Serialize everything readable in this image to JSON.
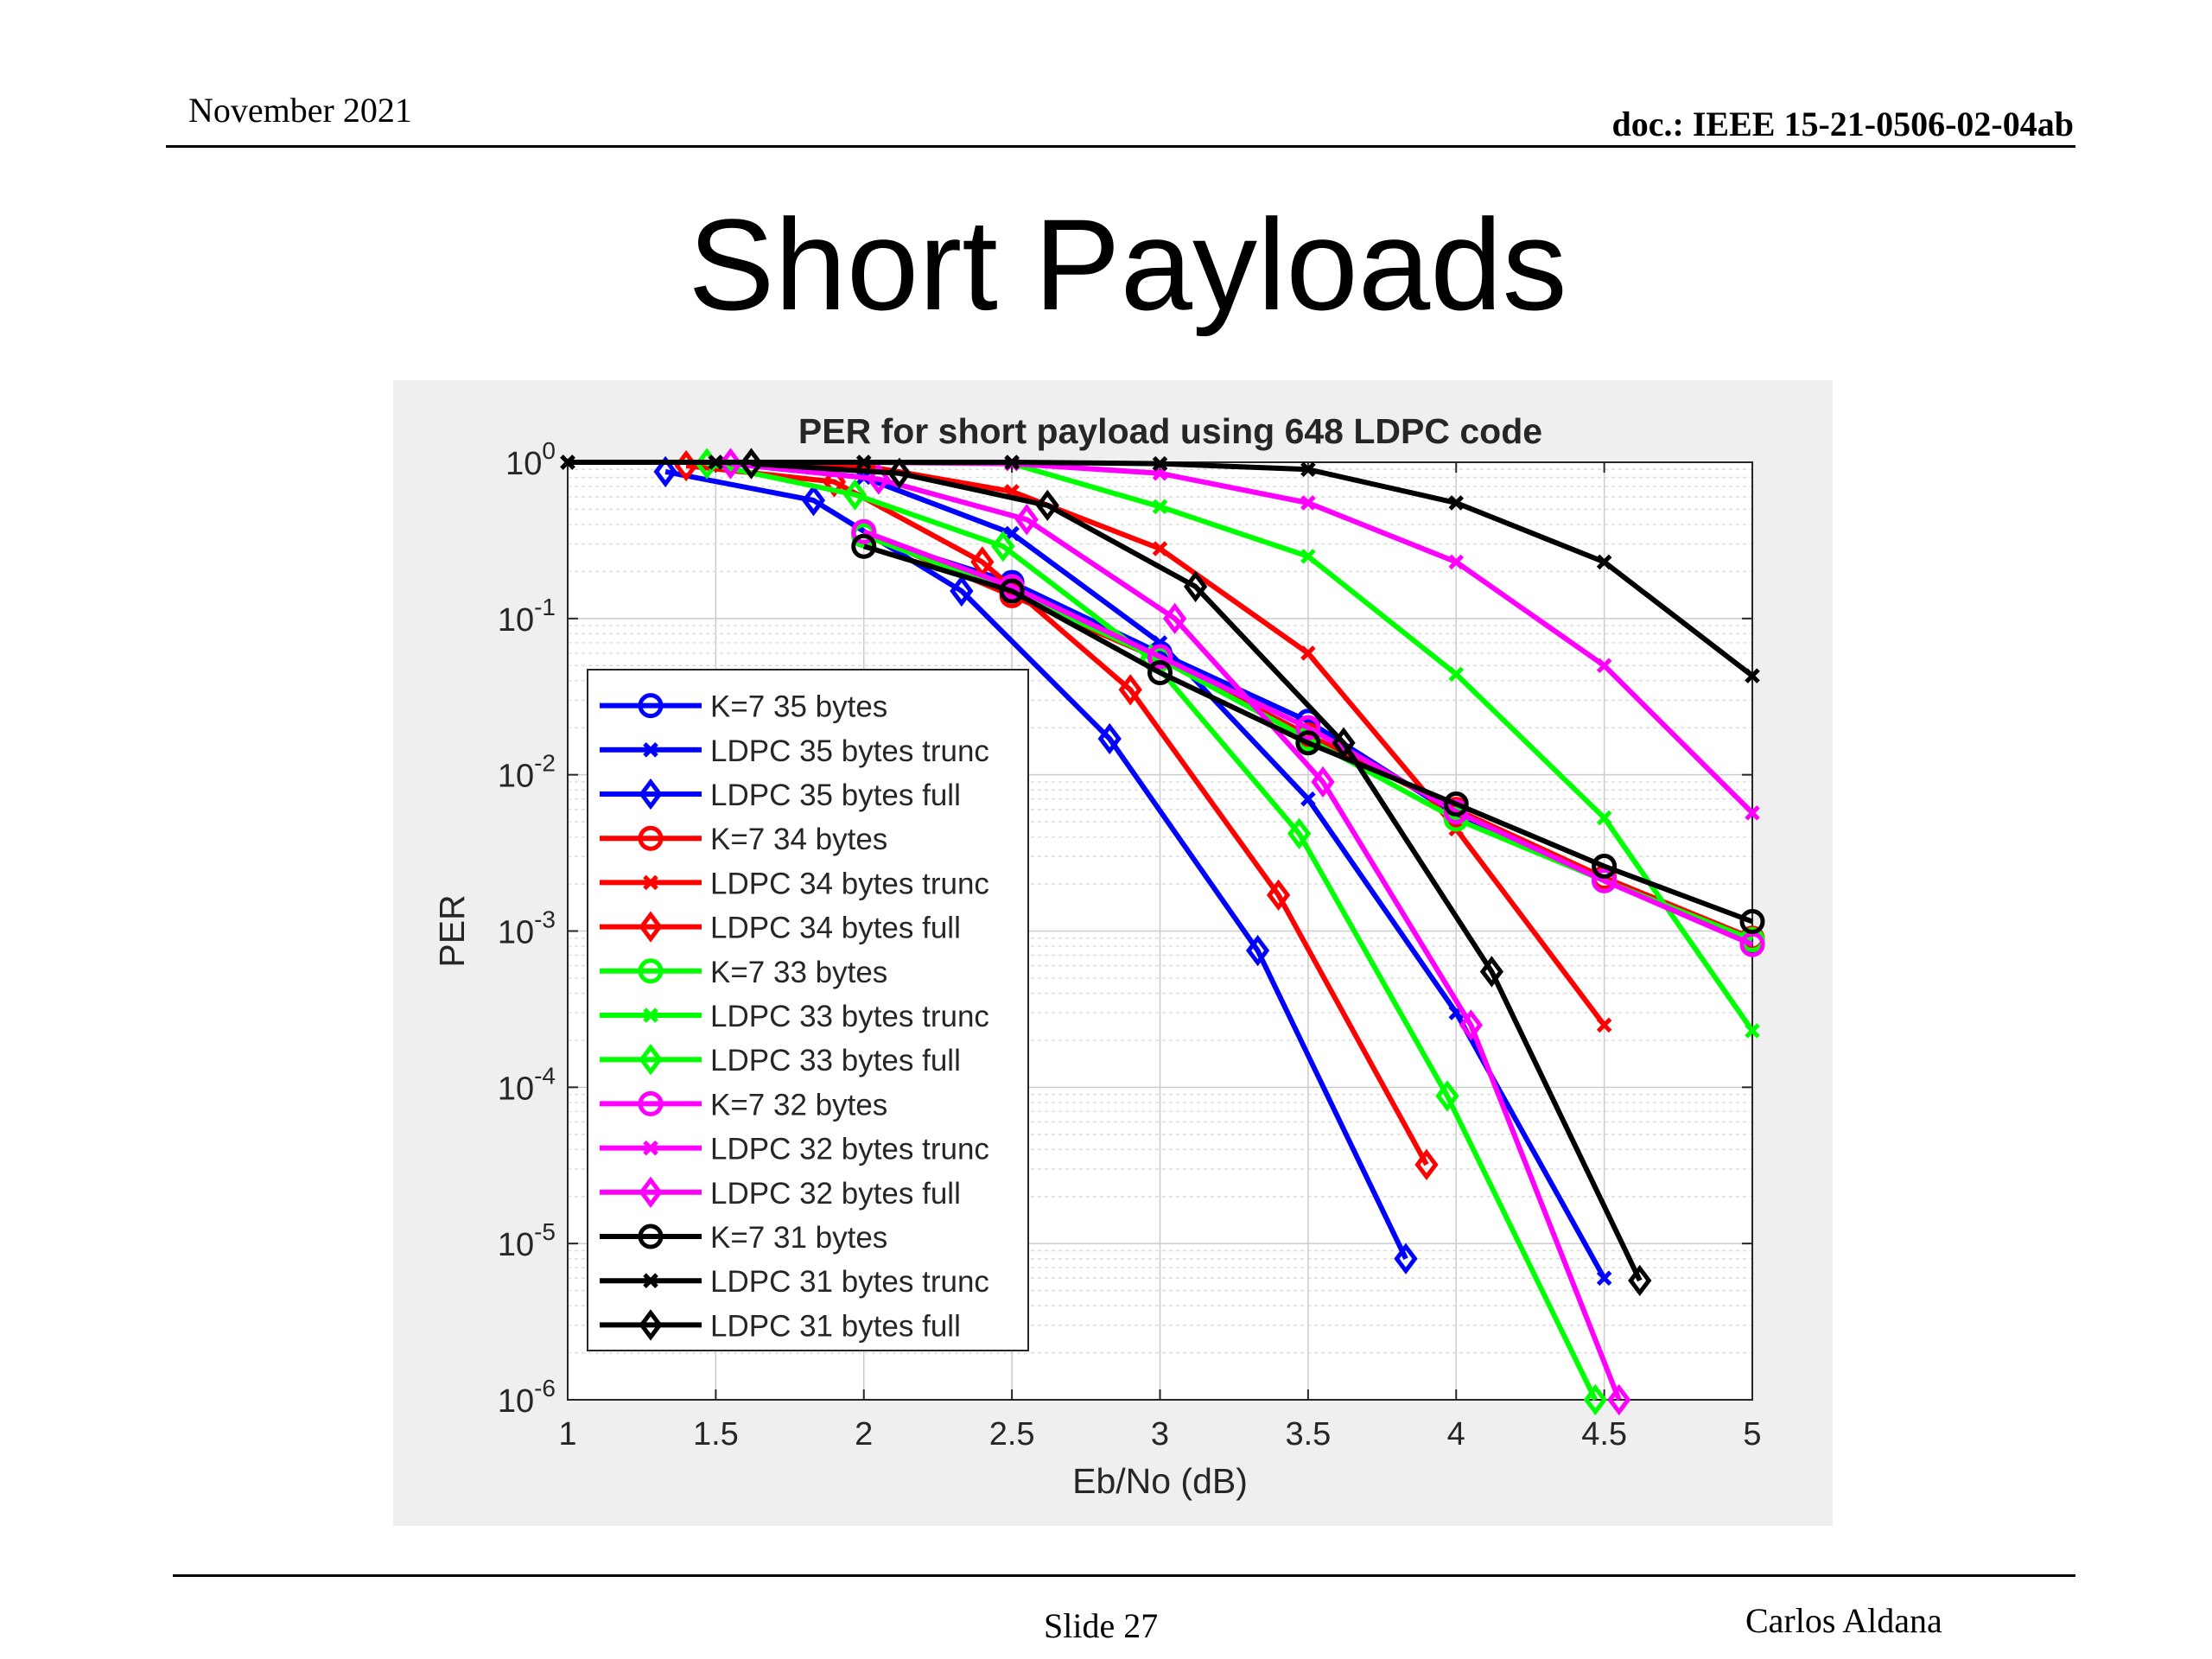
{
  "header": {
    "date": "November 2021",
    "doc": "doc.: IEEE 15-21-0506-02-04ab"
  },
  "slide": {
    "title": "Short Payloads",
    "number": "Slide 27",
    "author": "Carlos Aldana"
  },
  "colors": {
    "blue": "#0000ff",
    "red": "#ff0000",
    "green": "#00ff00",
    "magenta": "#ff00ff",
    "black": "#000000"
  },
  "chart_data": {
    "type": "line",
    "title": "PER for short payload using 648 LDPC code",
    "xlabel": "Eb/No (dB)",
    "ylabel": "PER",
    "xlim": [
      1,
      5
    ],
    "ylim": [
      1e-06,
      1
    ],
    "yscale": "log",
    "xticks": [
      "1",
      "1.5",
      "2",
      "2.5",
      "3",
      "3.5",
      "4",
      "4.5",
      "5"
    ],
    "grid": true,
    "legend_position": "left",
    "series": [
      {
        "name": "K=7 35 bytes",
        "color": "#0000ff",
        "marker": "o",
        "x": [
          2,
          2.5,
          3,
          3.5,
          4,
          4.5,
          5
        ],
        "y": [
          0.34,
          0.17,
          0.06,
          0.022,
          0.0055,
          0.0021,
          0.00085
        ]
      },
      {
        "name": "LDPC 35 bytes trunc",
        "color": "#0000ff",
        "marker": "x",
        "x": [
          1,
          1.5,
          2,
          2.5,
          3,
          3.5,
          4,
          4.5
        ],
        "y": [
          1,
          1,
          0.8,
          0.35,
          0.07,
          0.007,
          0.0003,
          6e-06
        ]
      },
      {
        "name": "LDPC 35 bytes full",
        "color": "#0000ff",
        "marker": "d",
        "x": [
          1.33,
          1.83,
          2.33,
          2.83,
          3.33,
          3.83
        ],
        "y": [
          0.87,
          0.57,
          0.15,
          0.017,
          0.00075,
          8e-06
        ]
      },
      {
        "name": "K=7 34 bytes",
        "color": "#ff0000",
        "marker": "o",
        "x": [
          2,
          2.5,
          3,
          3.5,
          4,
          4.5,
          5
        ],
        "y": [
          0.35,
          0.14,
          0.055,
          0.018,
          0.006,
          0.0022,
          0.0009
        ]
      },
      {
        "name": "LDPC 34 bytes trunc",
        "color": "#ff0000",
        "marker": "x",
        "x": [
          1,
          1.5,
          2,
          2.5,
          3,
          3.5,
          4,
          4.5
        ],
        "y": [
          1,
          1,
          0.95,
          0.65,
          0.28,
          0.06,
          0.0045,
          0.00025
        ]
      },
      {
        "name": "LDPC 34 bytes full",
        "color": "#ff0000",
        "marker": "d",
        "x": [
          1.4,
          1.9,
          2.4,
          2.9,
          3.4,
          3.9
        ],
        "y": [
          0.95,
          0.75,
          0.23,
          0.035,
          0.0017,
          3.2e-05
        ]
      },
      {
        "name": "K=7 33 bytes",
        "color": "#00ff00",
        "marker": "o",
        "x": [
          2,
          2.5,
          3,
          3.5,
          4,
          4.5,
          5
        ],
        "y": [
          0.34,
          0.15,
          0.055,
          0.017,
          0.0052,
          0.0021,
          0.00088
        ]
      },
      {
        "name": "LDPC 33 bytes trunc",
        "color": "#00ff00",
        "marker": "x",
        "x": [
          1,
          1.5,
          2,
          2.5,
          3,
          3.5,
          4,
          4.5,
          5
        ],
        "y": [
          1,
          1,
          1,
          0.98,
          0.52,
          0.25,
          0.044,
          0.0053,
          0.00023
        ]
      },
      {
        "name": "LDPC 33 bytes full",
        "color": "#00ff00",
        "marker": "d",
        "x": [
          1.47,
          1.97,
          2.47,
          2.97,
          3.47,
          3.97,
          4.47
        ],
        "y": [
          0.98,
          0.62,
          0.29,
          0.055,
          0.0042,
          8.8e-05,
          1e-06
        ]
      },
      {
        "name": "K=7 32 bytes",
        "color": "#ff00ff",
        "marker": "o",
        "x": [
          2,
          2.5,
          3,
          3.5,
          4,
          4.5,
          5
        ],
        "y": [
          0.36,
          0.16,
          0.057,
          0.02,
          0.0058,
          0.0021,
          0.00082
        ]
      },
      {
        "name": "LDPC 32 bytes trunc",
        "color": "#ff00ff",
        "marker": "x",
        "x": [
          1,
          1.5,
          2,
          2.5,
          3,
          3.5,
          4,
          4.5,
          5
        ],
        "y": [
          1,
          1,
          1,
          0.98,
          0.85,
          0.55,
          0.23,
          0.05,
          0.0057
        ]
      },
      {
        "name": "LDPC 32 bytes full",
        "color": "#ff00ff",
        "marker": "d",
        "x": [
          1.55,
          2.05,
          2.55,
          3.05,
          3.55,
          4.05,
          4.55
        ],
        "y": [
          0.98,
          0.78,
          0.43,
          0.1,
          0.009,
          0.00025,
          1e-06
        ]
      },
      {
        "name": "K=7 31 bytes",
        "color": "#000000",
        "marker": "o",
        "x": [
          2,
          2.5,
          3,
          3.5,
          4,
          4.5,
          5
        ],
        "y": [
          0.29,
          0.15,
          0.045,
          0.016,
          0.0065,
          0.0026,
          0.00115
        ]
      },
      {
        "name": "LDPC 31 bytes trunc",
        "color": "#000000",
        "marker": "x",
        "x": [
          1,
          1.5,
          2,
          2.5,
          3,
          3.5,
          4,
          4.5,
          5
        ],
        "y": [
          1,
          1,
          1,
          1,
          0.98,
          0.9,
          0.55,
          0.23,
          0.043
        ]
      },
      {
        "name": "LDPC 31 bytes full",
        "color": "#000000",
        "marker": "d",
        "x": [
          1.62,
          2.12,
          2.62,
          3.12,
          3.62,
          4.12,
          4.62
        ],
        "y": [
          0.98,
          0.85,
          0.53,
          0.16,
          0.016,
          0.00055,
          5.8e-06
        ]
      }
    ]
  }
}
